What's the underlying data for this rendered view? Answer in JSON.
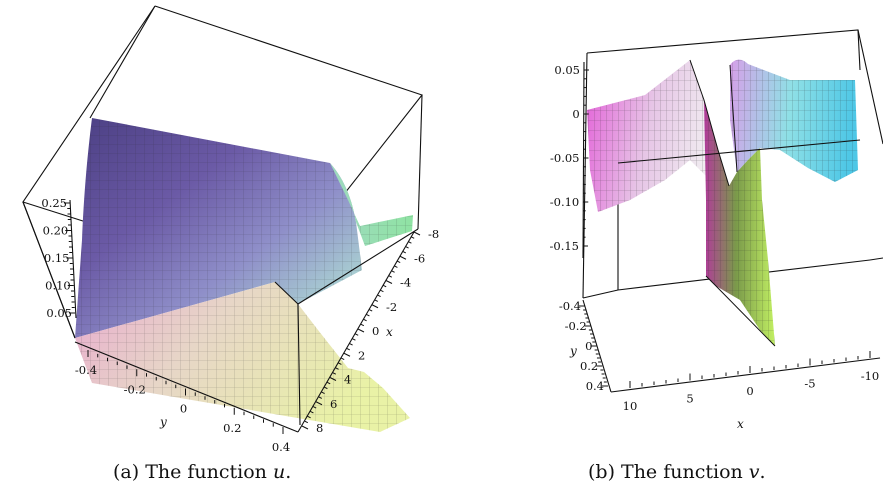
{
  "figure": {
    "panels": [
      {
        "id": "a",
        "caption_prefix": "(a) The function ",
        "caption_var": "u",
        "caption_suffix": ".",
        "chart_data": {
          "type": "surface3d",
          "z_ticks": [
            "0.05",
            "0.10",
            "0.15",
            "0.20",
            "0.25"
          ],
          "y_ticks": [
            "-0.4",
            "-0.2",
            "0",
            "0.2",
            "0.4"
          ],
          "x_ticks": [
            "-8",
            "-6",
            "-4",
            "-2",
            "0",
            "2",
            "4",
            "6",
            "8"
          ],
          "xlabel": "x",
          "ylabel": "y",
          "xlim": [
            -8,
            8
          ],
          "ylim": [
            -0.5,
            0.5
          ],
          "zlim": [
            0,
            0.25
          ]
        }
      },
      {
        "id": "b",
        "caption_prefix": "(b) The function ",
        "caption_var": "v",
        "caption_suffix": ".",
        "chart_data": {
          "type": "surface3d",
          "z_ticks": [
            "0.05",
            "0",
            "-0.05",
            "-0.10",
            "-0.15"
          ],
          "y_ticks": [
            "-0.4",
            "-0.2",
            "0",
            "0.2",
            "0.4"
          ],
          "x_ticks": [
            "10",
            "5",
            "0",
            "-5",
            "-10"
          ],
          "xlabel": "x",
          "ylabel": "y",
          "xlim": [
            -12,
            12
          ],
          "ylim": [
            -0.5,
            0.5
          ],
          "zlim": [
            -0.2,
            0.06
          ]
        }
      }
    ]
  }
}
